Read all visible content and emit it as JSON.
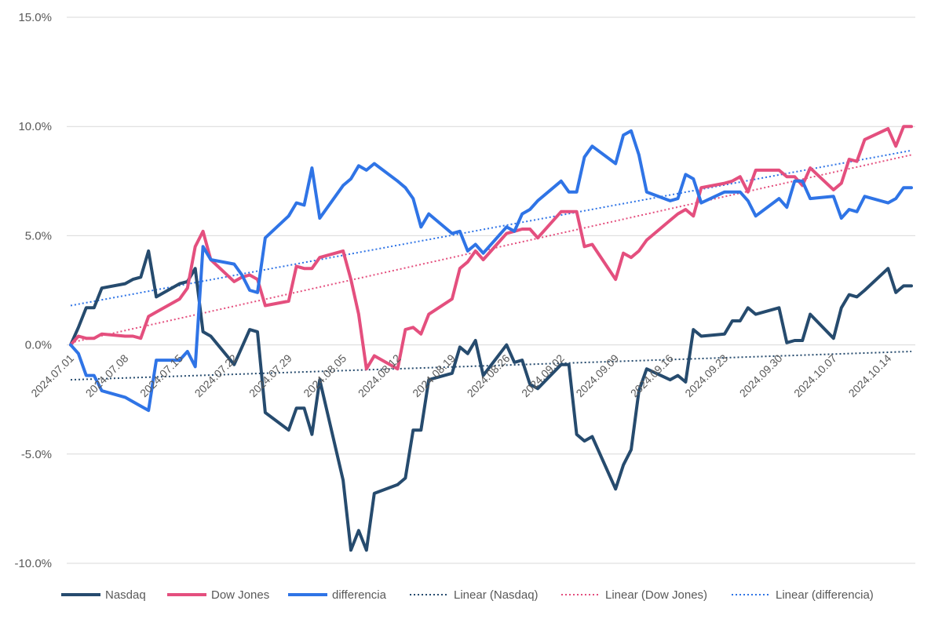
{
  "chart_data": {
    "type": "line",
    "ylim": [
      -0.1,
      0.15
    ],
    "yticks": [
      -0.1,
      -0.05,
      0.0,
      0.05,
      0.1,
      0.15
    ],
    "ytick_labels": [
      "-10.0%",
      "-5.0%",
      "0.0%",
      "5.0%",
      "10.0%",
      "15.0%"
    ],
    "grid": true,
    "legend_position": "bottom",
    "x_start": "2024.07.01",
    "x_end": "2024.10.17",
    "xtick_labels": [
      "2024.07.01",
      "2024.07.08",
      "2024.07.15",
      "2024.07.22",
      "2024.07.29",
      "2024.08.05",
      "2024.08.12",
      "2024.08.19",
      "2024.08.26",
      "2024.09.02",
      "2024.09.09",
      "2024.09.16",
      "2024.09.23",
      "2024.09.30",
      "2024.10.07",
      "2024.10.14"
    ],
    "series": [
      {
        "name": "Nasdaq",
        "color": "#264b6e",
        "style": "solid",
        "points": [
          [
            "2024.07.01",
            0.0
          ],
          [
            "2024.07.02",
            0.008
          ],
          [
            "2024.07.03",
            0.017
          ],
          [
            "2024.07.04",
            0.017
          ],
          [
            "2024.07.05",
            0.026
          ],
          [
            "2024.07.08",
            0.028
          ],
          [
            "2024.07.09",
            0.03
          ],
          [
            "2024.07.10",
            0.031
          ],
          [
            "2024.07.11",
            0.043
          ],
          [
            "2024.07.12",
            0.022
          ],
          [
            "2024.07.15",
            0.028
          ],
          [
            "2024.07.16",
            0.029
          ],
          [
            "2024.07.17",
            0.035
          ],
          [
            "2024.07.18",
            0.006
          ],
          [
            "2024.07.19",
            0.004
          ],
          [
            "2024.07.22",
            -0.009
          ],
          [
            "2024.07.23",
            -0.001
          ],
          [
            "2024.07.24",
            0.007
          ],
          [
            "2024.07.25",
            0.006
          ],
          [
            "2024.07.26",
            -0.031
          ],
          [
            "2024.07.29",
            -0.039
          ],
          [
            "2024.07.30",
            -0.029
          ],
          [
            "2024.07.31",
            -0.029
          ],
          [
            "2024.08.01",
            -0.041
          ],
          [
            "2024.08.02",
            -0.016
          ],
          [
            "2024.08.05",
            -0.062
          ],
          [
            "2024.08.06",
            -0.094
          ],
          [
            "2024.08.07",
            -0.085
          ],
          [
            "2024.08.08",
            -0.094
          ],
          [
            "2024.08.09",
            -0.068
          ],
          [
            "2024.08.12",
            -0.064
          ],
          [
            "2024.08.13",
            -0.061
          ],
          [
            "2024.08.14",
            -0.039
          ],
          [
            "2024.08.15",
            -0.039
          ],
          [
            "2024.08.16",
            -0.016
          ],
          [
            "2024.08.19",
            -0.013
          ],
          [
            "2024.08.20",
            -0.001
          ],
          [
            "2024.08.21",
            -0.004
          ],
          [
            "2024.08.22",
            0.002
          ],
          [
            "2024.08.23",
            -0.014
          ],
          [
            "2024.08.26",
            0.0
          ],
          [
            "2024.08.27",
            -0.008
          ],
          [
            "2024.08.28",
            -0.007
          ],
          [
            "2024.08.29",
            -0.018
          ],
          [
            "2024.08.30",
            -0.02
          ],
          [
            "2024.09.02",
            -0.009
          ],
          [
            "2024.09.03",
            -0.009
          ],
          [
            "2024.09.04",
            -0.041
          ],
          [
            "2024.09.05",
            -0.044
          ],
          [
            "2024.09.06",
            -0.042
          ],
          [
            "2024.09.09",
            -0.066
          ],
          [
            "2024.09.10",
            -0.055
          ],
          [
            "2024.09.11",
            -0.048
          ],
          [
            "2024.09.12",
            -0.021
          ],
          [
            "2024.09.13",
            -0.011
          ],
          [
            "2024.09.16",
            -0.016
          ],
          [
            "2024.09.17",
            -0.014
          ],
          [
            "2024.09.18",
            -0.017
          ],
          [
            "2024.09.19",
            0.007
          ],
          [
            "2024.09.20",
            0.004
          ],
          [
            "2024.09.23",
            0.005
          ],
          [
            "2024.09.24",
            0.011
          ],
          [
            "2024.09.25",
            0.011
          ],
          [
            "2024.09.26",
            0.017
          ],
          [
            "2024.09.27",
            0.014
          ],
          [
            "2024.09.30",
            0.017
          ],
          [
            "2024.10.01",
            0.001
          ],
          [
            "2024.10.02",
            0.002
          ],
          [
            "2024.10.03",
            0.002
          ],
          [
            "2024.10.04",
            0.014
          ],
          [
            "2024.10.07",
            0.003
          ],
          [
            "2024.10.08",
            0.017
          ],
          [
            "2024.10.09",
            0.023
          ],
          [
            "2024.10.10",
            0.022
          ],
          [
            "2024.10.11",
            0.025
          ],
          [
            "2024.10.14",
            0.035
          ],
          [
            "2024.10.15",
            0.024
          ],
          [
            "2024.10.16",
            0.027
          ],
          [
            "2024.10.17",
            0.027
          ]
        ]
      },
      {
        "name": "Dow Jones",
        "color": "#e44f7e",
        "style": "solid",
        "points": [
          [
            "2024.07.01",
            0.0
          ],
          [
            "2024.07.02",
            0.004
          ],
          [
            "2024.07.03",
            0.003
          ],
          [
            "2024.07.04",
            0.003
          ],
          [
            "2024.07.05",
            0.005
          ],
          [
            "2024.07.08",
            0.004
          ],
          [
            "2024.07.09",
            0.004
          ],
          [
            "2024.07.10",
            0.003
          ],
          [
            "2024.07.11",
            0.013
          ],
          [
            "2024.07.12",
            0.015
          ],
          [
            "2024.07.15",
            0.021
          ],
          [
            "2024.07.16",
            0.026
          ],
          [
            "2024.07.17",
            0.045
          ],
          [
            "2024.07.18",
            0.052
          ],
          [
            "2024.07.19",
            0.039
          ],
          [
            "2024.07.22",
            0.029
          ],
          [
            "2024.07.23",
            0.031
          ],
          [
            "2024.07.24",
            0.032
          ],
          [
            "2024.07.25",
            0.03
          ],
          [
            "2024.07.26",
            0.018
          ],
          [
            "2024.07.29",
            0.02
          ],
          [
            "2024.07.30",
            0.036
          ],
          [
            "2024.07.31",
            0.035
          ],
          [
            "2024.08.01",
            0.035
          ],
          [
            "2024.08.02",
            0.04
          ],
          [
            "2024.08.05",
            0.043
          ],
          [
            "2024.08.06",
            0.03
          ],
          [
            "2024.08.07",
            0.014
          ],
          [
            "2024.08.08",
            -0.011
          ],
          [
            "2024.08.09",
            -0.005
          ],
          [
            "2024.08.12",
            -0.011
          ],
          [
            "2024.08.13",
            0.007
          ],
          [
            "2024.08.14",
            0.008
          ],
          [
            "2024.08.15",
            0.005
          ],
          [
            "2024.08.16",
            0.014
          ],
          [
            "2024.08.19",
            0.021
          ],
          [
            "2024.08.20",
            0.035
          ],
          [
            "2024.08.21",
            0.038
          ],
          [
            "2024.08.22",
            0.043
          ],
          [
            "2024.08.23",
            0.039
          ],
          [
            "2024.08.26",
            0.051
          ],
          [
            "2024.08.27",
            0.052
          ],
          [
            "2024.08.28",
            0.053
          ],
          [
            "2024.08.29",
            0.053
          ],
          [
            "2024.08.30",
            0.049
          ],
          [
            "2024.09.02",
            0.061
          ],
          [
            "2024.09.03",
            0.061
          ],
          [
            "2024.09.04",
            0.061
          ],
          [
            "2024.09.05",
            0.045
          ],
          [
            "2024.09.06",
            0.046
          ],
          [
            "2024.09.09",
            0.03
          ],
          [
            "2024.09.10",
            0.042
          ],
          [
            "2024.09.11",
            0.04
          ],
          [
            "2024.09.12",
            0.043
          ],
          [
            "2024.09.13",
            0.048
          ],
          [
            "2024.09.16",
            0.057
          ],
          [
            "2024.09.17",
            0.06
          ],
          [
            "2024.09.18",
            0.062
          ],
          [
            "2024.09.19",
            0.059
          ],
          [
            "2024.09.20",
            0.072
          ],
          [
            "2024.09.23",
            0.074
          ],
          [
            "2024.09.24",
            0.075
          ],
          [
            "2024.09.25",
            0.077
          ],
          [
            "2024.09.26",
            0.07
          ],
          [
            "2024.09.27",
            0.08
          ],
          [
            "2024.09.30",
            0.08
          ],
          [
            "2024.10.01",
            0.077
          ],
          [
            "2024.10.02",
            0.077
          ],
          [
            "2024.10.03",
            0.073
          ],
          [
            "2024.10.04",
            0.081
          ],
          [
            "2024.10.07",
            0.071
          ],
          [
            "2024.10.08",
            0.074
          ],
          [
            "2024.10.09",
            0.085
          ],
          [
            "2024.10.10",
            0.084
          ],
          [
            "2024.10.11",
            0.094
          ],
          [
            "2024.10.14",
            0.099
          ],
          [
            "2024.10.15",
            0.091
          ],
          [
            "2024.10.16",
            0.1
          ],
          [
            "2024.10.17",
            0.1
          ]
        ]
      },
      {
        "name": "differencia",
        "color": "#2f74e6",
        "style": "solid",
        "points": [
          [
            "2024.07.01",
            0.0
          ],
          [
            "2024.07.02",
            -0.004
          ],
          [
            "2024.07.03",
            -0.014
          ],
          [
            "2024.07.04",
            -0.014
          ],
          [
            "2024.07.05",
            -0.021
          ],
          [
            "2024.07.08",
            -0.024
          ],
          [
            "2024.07.09",
            -0.026
          ],
          [
            "2024.07.10",
            -0.028
          ],
          [
            "2024.07.11",
            -0.03
          ],
          [
            "2024.07.12",
            -0.007
          ],
          [
            "2024.07.15",
            -0.007
          ],
          [
            "2024.07.16",
            -0.003
          ],
          [
            "2024.07.17",
            -0.01
          ],
          [
            "2024.07.18",
            0.045
          ],
          [
            "2024.07.19",
            0.039
          ],
          [
            "2024.07.22",
            0.037
          ],
          [
            "2024.07.23",
            0.032
          ],
          [
            "2024.07.24",
            0.025
          ],
          [
            "2024.07.25",
            0.024
          ],
          [
            "2024.07.26",
            0.049
          ],
          [
            "2024.07.29",
            0.059
          ],
          [
            "2024.07.30",
            0.065
          ],
          [
            "2024.07.31",
            0.064
          ],
          [
            "2024.08.01",
            0.081
          ],
          [
            "2024.08.02",
            0.058
          ],
          [
            "2024.08.05",
            0.073
          ],
          [
            "2024.08.06",
            0.076
          ],
          [
            "2024.08.07",
            0.082
          ],
          [
            "2024.08.08",
            0.08
          ],
          [
            "2024.08.09",
            0.083
          ],
          [
            "2024.08.12",
            0.075
          ],
          [
            "2024.08.13",
            0.072
          ],
          [
            "2024.08.14",
            0.067
          ],
          [
            "2024.08.15",
            0.054
          ],
          [
            "2024.08.16",
            0.06
          ],
          [
            "2024.08.19",
            0.051
          ],
          [
            "2024.08.20",
            0.052
          ],
          [
            "2024.08.21",
            0.043
          ],
          [
            "2024.08.22",
            0.046
          ],
          [
            "2024.08.23",
            0.042
          ],
          [
            "2024.08.26",
            0.054
          ],
          [
            "2024.08.27",
            0.052
          ],
          [
            "2024.08.28",
            0.06
          ],
          [
            "2024.08.29",
            0.062
          ],
          [
            "2024.08.30",
            0.066
          ],
          [
            "2024.09.02",
            0.075
          ],
          [
            "2024.09.03",
            0.07
          ],
          [
            "2024.09.04",
            0.07
          ],
          [
            "2024.09.05",
            0.086
          ],
          [
            "2024.09.06",
            0.091
          ],
          [
            "2024.09.09",
            0.083
          ],
          [
            "2024.09.10",
            0.096
          ],
          [
            "2024.09.11",
            0.098
          ],
          [
            "2024.09.12",
            0.087
          ],
          [
            "2024.09.13",
            0.07
          ],
          [
            "2024.09.16",
            0.066
          ],
          [
            "2024.09.17",
            0.067
          ],
          [
            "2024.09.18",
            0.078
          ],
          [
            "2024.09.19",
            0.076
          ],
          [
            "2024.09.20",
            0.065
          ],
          [
            "2024.09.23",
            0.07
          ],
          [
            "2024.09.24",
            0.07
          ],
          [
            "2024.09.25",
            0.07
          ],
          [
            "2024.09.26",
            0.066
          ],
          [
            "2024.09.27",
            0.059
          ],
          [
            "2024.09.30",
            0.067
          ],
          [
            "2024.10.01",
            0.063
          ],
          [
            "2024.10.02",
            0.075
          ],
          [
            "2024.10.03",
            0.075
          ],
          [
            "2024.10.04",
            0.067
          ],
          [
            "2024.10.07",
            0.068
          ],
          [
            "2024.10.08",
            0.058
          ],
          [
            "2024.10.09",
            0.062
          ],
          [
            "2024.10.10",
            0.061
          ],
          [
            "2024.10.11",
            0.068
          ],
          [
            "2024.10.14",
            0.065
          ],
          [
            "2024.10.15",
            0.067
          ],
          [
            "2024.10.16",
            0.072
          ],
          [
            "2024.10.17",
            0.072
          ]
        ]
      },
      {
        "name": "Linear (Nasdaq)",
        "color": "#264b6e",
        "style": "dotted",
        "trend_of": "Nasdaq",
        "points": [
          [
            "2024.07.01",
            -0.016
          ],
          [
            "2024.10.17",
            -0.003
          ]
        ]
      },
      {
        "name": "Linear (Dow Jones)",
        "color": "#e44f7e",
        "style": "dotted",
        "trend_of": "Dow Jones",
        "points": [
          [
            "2024.07.01",
            0.001
          ],
          [
            "2024.10.17",
            0.087
          ]
        ]
      },
      {
        "name": "Linear (differencia)",
        "color": "#2f74e6",
        "style": "dotted",
        "trend_of": "differencia",
        "points": [
          [
            "2024.07.01",
            0.018
          ],
          [
            "2024.10.17",
            0.089
          ]
        ]
      }
    ]
  }
}
